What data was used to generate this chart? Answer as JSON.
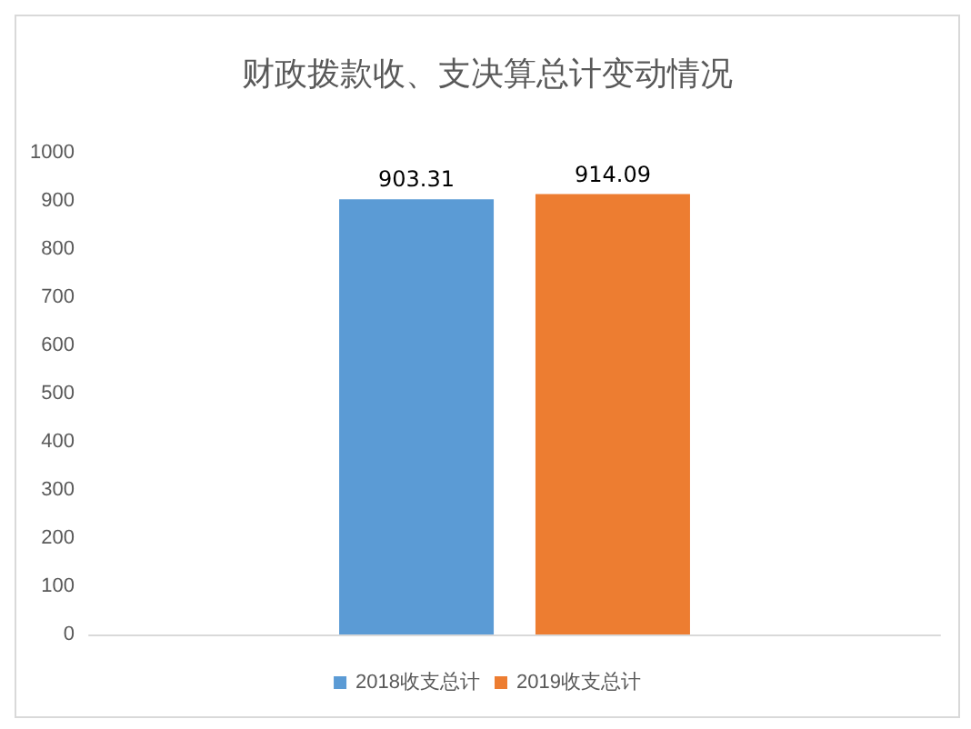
{
  "chart_data": {
    "type": "bar",
    "title": "财政拨款收、支决算总计变动情况",
    "categories": [
      null
    ],
    "series": [
      {
        "name": "2018收支总计",
        "color": "#5b9bd5",
        "values": [
          903.31
        ]
      },
      {
        "name": "2019收支总计",
        "color": "#ed7d31",
        "values": [
          914.09
        ]
      }
    ],
    "ylim": [
      0,
      1000
    ],
    "yticks": [
      0,
      100,
      200,
      300,
      400,
      500,
      600,
      700,
      800,
      900,
      1000
    ],
    "grid": false,
    "legend": "bottom",
    "data_labels": true
  }
}
